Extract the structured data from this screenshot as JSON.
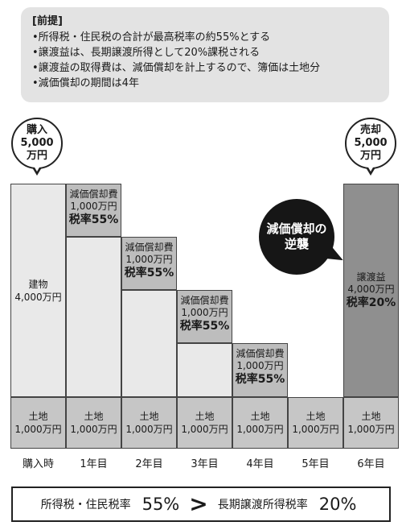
{
  "premise": {
    "title": "[前提]",
    "items": [
      "•所得税・住民税の合計が最高税率の約55%とする",
      "•譲渡益は、長期譲渡所得として20%課税される",
      "•譲渡益の取得費は、減価償却を計上するので、簿価は土地分",
      "•減価償却の期間は4年"
    ]
  },
  "purchase_bubble": {
    "line1": "購入",
    "line2": "5,000",
    "line3": "万円"
  },
  "sale_bubble": {
    "line1": "売却",
    "line2": "5,000",
    "line3": "万円"
  },
  "reverse_bubble": {
    "line1": "減価償却の",
    "line2": "逆襲"
  },
  "building": {
    "label": "建物",
    "amount": "4,000万円"
  },
  "depreciation": [
    {
      "label": "減価償却費",
      "amount": "1,000万円",
      "rate": "税率55%"
    },
    {
      "label": "減価償却費",
      "amount": "1,000万円",
      "rate": "税率55%"
    },
    {
      "label": "減価償却費",
      "amount": "1,000万円",
      "rate": "税率55%"
    },
    {
      "label": "減価償却費",
      "amount": "1,000万円",
      "rate": "税率55%"
    }
  ],
  "gain": {
    "label": "譲渡益",
    "amount": "4,000万円",
    "rate": "税率20%"
  },
  "land": {
    "label": "土地",
    "amount": "1,000万円"
  },
  "years": [
    "購入時",
    "1年目",
    "2年目",
    "3年目",
    "4年目",
    "5年目",
    "6年目"
  ],
  "comparison": {
    "left_label": "所得税・住民税率",
    "left_value": "55%",
    "operator": ">",
    "right_label": "長期譲渡所得税率",
    "right_value": "20%"
  },
  "colors": {
    "light": "#e9e9e9",
    "mid": "#bdbdbd",
    "dark": "#8f8f8f",
    "land": "#c6c6c6"
  }
}
